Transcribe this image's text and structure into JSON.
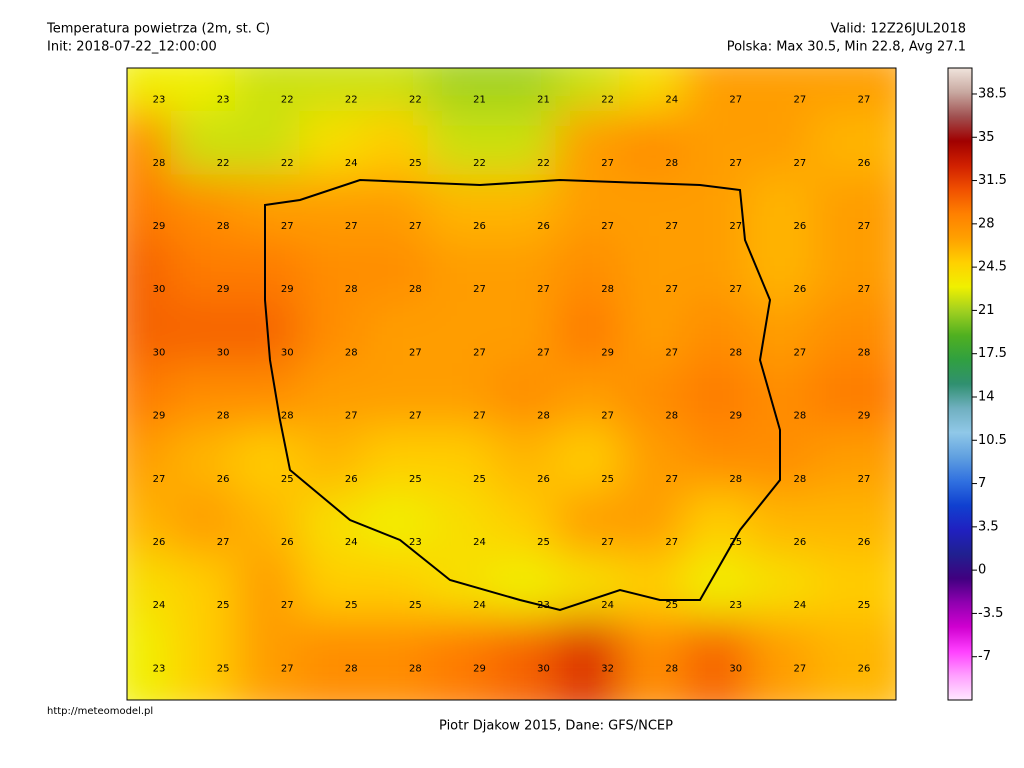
{
  "header": {
    "title": "Temperatura powietrza (2m, st. C)",
    "init": "Init: 2018-07-22_12:00:00",
    "valid": "Valid: 12Z26JUL2018",
    "stats": "Polska: Max 30.5, Min 22.8, Avg 27.1"
  },
  "map": {
    "values": [
      [
        23,
        23,
        22,
        22,
        22,
        21,
        21,
        22,
        24,
        27,
        27,
        27
      ],
      [
        28,
        22,
        22,
        24,
        25,
        22,
        22,
        27,
        28,
        27,
        27,
        26
      ],
      [
        29,
        28,
        27,
        27,
        27,
        26,
        26,
        27,
        27,
        27,
        26,
        27
      ],
      [
        30,
        29,
        29,
        28,
        28,
        27,
        27,
        28,
        27,
        27,
        26,
        27
      ],
      [
        30,
        30,
        30,
        28,
        27,
        27,
        27,
        29,
        27,
        28,
        27,
        28
      ],
      [
        29,
        28,
        28,
        27,
        27,
        27,
        28,
        27,
        28,
        29,
        28,
        29
      ],
      [
        27,
        26,
        25,
        26,
        25,
        25,
        26,
        25,
        27,
        28,
        28,
        27
      ],
      [
        26,
        27,
        26,
        24,
        23,
        24,
        25,
        27,
        27,
        25,
        26,
        26
      ],
      [
        24,
        25,
        27,
        25,
        25,
        24,
        23,
        24,
        25,
        23,
        24,
        25
      ],
      [
        23,
        25,
        27,
        28,
        28,
        29,
        30,
        32,
        28,
        30,
        27,
        26
      ]
    ]
  },
  "colorbar": {
    "lim": [
      -10.5,
      40.6
    ],
    "ticks": [
      38.5,
      35,
      31.5,
      28,
      24.5,
      21,
      17.5,
      14,
      10.5,
      7,
      3.5,
      0,
      -3.5,
      -7
    ],
    "colors": [
      "#ffe8ff",
      "#ffa0ff",
      "#ff40ff",
      "#d000d0",
      "#9000b0",
      "#400080",
      "#202090",
      "#2020c0",
      "#1040d0",
      "#3070e0",
      "#60a0e0",
      "#90c8e8",
      "#70b0c0",
      "#309070",
      "#30a040",
      "#50b020",
      "#a0d020",
      "#f0f000",
      "#ffd000",
      "#ffa000",
      "#ff8000",
      "#f05000",
      "#d02000",
      "#a00000",
      "#a05050",
      "#c8a8a0",
      "#f0e4dc"
    ]
  },
  "footer": {
    "url": "http://meteomodel.pl",
    "credit": "Piotr Djakow 2015, Dane: GFS/NCEP"
  }
}
